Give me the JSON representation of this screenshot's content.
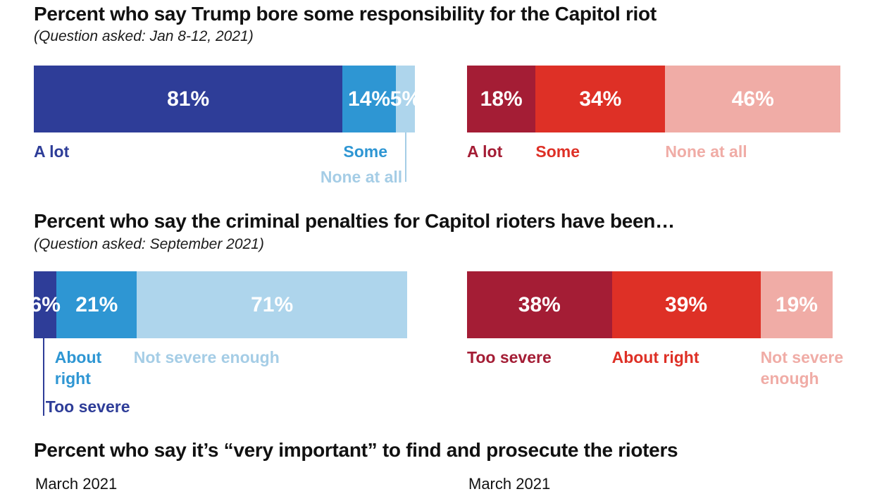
{
  "colors": {
    "blue_dark": "#2e3d98",
    "blue_mid": "#2e96d3",
    "blue_light": "#aed5ec",
    "blue_light_label": "#a5cde6",
    "red_dark": "#a41d35",
    "red_mid": "#de3026",
    "red_light": "#f0aca6",
    "title_text": "#111111"
  },
  "chart_data": {
    "type": "bar",
    "variant": "horizontal-stacked-bar-pairs",
    "axis_scale_pct": [
      0,
      100
    ],
    "grid": false,
    "legend": "inline-labels-below-bars",
    "charts": [
      {
        "title": "Percent who say Trump bore some responsibility for the Capitol riot",
        "subtitle": "(Question asked: Jan 8-12, 2021)",
        "rows": [
          {
            "side": "left",
            "palette": "blue",
            "categories": [
              "A lot",
              "Some",
              "None at all"
            ],
            "values": [
              81,
              14,
              5
            ],
            "segments": [
              {
                "label": "A lot",
                "value": 81,
                "color": "#2e3d98",
                "label_color": "#2e3d98",
                "label_pos": {
                  "anchor": "left",
                  "x_pct": 0,
                  "row": 1
                }
              },
              {
                "label": "Some",
                "value": 14,
                "color": "#2e96d3",
                "label_color": "#2e96d3",
                "label_pos": {
                  "anchor": "right",
                  "x_pct": 92.8,
                  "row": 1
                }
              },
              {
                "label": "None at all",
                "value": 5,
                "color": "#aed5ec",
                "label_color": "#a5cde6",
                "label_pos": {
                  "anchor": "right",
                  "x_pct": 96.7,
                  "row": 2
                },
                "tick": {
                  "x_pct": 97.6,
                  "height": 70,
                  "color": "#a5cde6"
                }
              }
            ]
          },
          {
            "side": "right",
            "palette": "red",
            "categories": [
              "A lot",
              "Some",
              "None at all"
            ],
            "values": [
              18,
              34,
              46
            ],
            "segments": [
              {
                "label": "A lot",
                "value": 18,
                "color": "#a41d35",
                "label_color": "#a41d35",
                "label_pos": {
                  "anchor": "left",
                  "x_pct": 0,
                  "row": 1
                }
              },
              {
                "label": "Some",
                "value": 34,
                "color": "#de3026",
                "label_color": "#de3026",
                "label_pos": {
                  "anchor": "left",
                  "x_pct": 18,
                  "row": 1
                }
              },
              {
                "label": "None at all",
                "value": 46,
                "color": "#f0aca6",
                "label_color": "#f0aca6",
                "label_pos": {
                  "anchor": "left",
                  "x_pct": 52,
                  "row": 1
                }
              }
            ]
          }
        ]
      },
      {
        "title": "Percent who say the criminal penalties for Capitol rioters have been…",
        "subtitle": "(Question asked: September 2021)",
        "rows": [
          {
            "side": "left",
            "palette": "blue",
            "categories": [
              "Too severe",
              "About right",
              "Not severe enough"
            ],
            "values": [
              6,
              21,
              71
            ],
            "segments": [
              {
                "label": "Too severe",
                "value": 6,
                "color": "#2e3d98",
                "label_color": "#2e3d98",
                "label_pos": {
                  "anchor": "left",
                  "x_pct": 3.1,
                  "row": 3,
                  "nowrap": true
                },
                "tick": {
                  "x_pct": 2.6,
                  "height": 110,
                  "color": "#2e3d98"
                }
              },
              {
                "label": "About right",
                "value": 21,
                "color": "#2e96d3",
                "label_color": "#2e96d3",
                "label_pos": {
                  "anchor": "left",
                  "x_pct": 5.5,
                  "row": 1,
                  "max_w": 110
                }
              },
              {
                "label": "Not severe enough",
                "value": 71,
                "color": "#aed5ec",
                "label_color": "#a5cde6",
                "label_pos": {
                  "anchor": "left",
                  "x_pct": 26.2,
                  "row": 1,
                  "nowrap": true
                }
              }
            ]
          },
          {
            "side": "right",
            "palette": "red",
            "categories": [
              "Too severe",
              "About right",
              "Not severe enough"
            ],
            "values": [
              38,
              39,
              19
            ],
            "segments": [
              {
                "label": "Too severe",
                "value": 38,
                "color": "#a41d35",
                "label_color": "#a41d35",
                "label_pos": {
                  "anchor": "left",
                  "x_pct": 0,
                  "row": 1,
                  "nowrap": true
                }
              },
              {
                "label": "About right",
                "value": 39,
                "color": "#de3026",
                "label_color": "#de3026",
                "label_pos": {
                  "anchor": "left",
                  "x_pct": 38,
                  "row": 1,
                  "nowrap": true
                }
              },
              {
                "label": "Not severe enough",
                "value": 19,
                "color": "#f0aca6",
                "label_color": "#f0aca6",
                "label_pos": {
                  "anchor": "left",
                  "x_pct": 77,
                  "row": 1,
                  "max_w": 125
                }
              }
            ]
          }
        ]
      },
      {
        "title": "Percent who say it’s “very important” to find and prosecute the rioters",
        "subtitle": "",
        "rows": [],
        "column_labels": [
          "March 2021",
          "March 2021"
        ]
      }
    ]
  }
}
